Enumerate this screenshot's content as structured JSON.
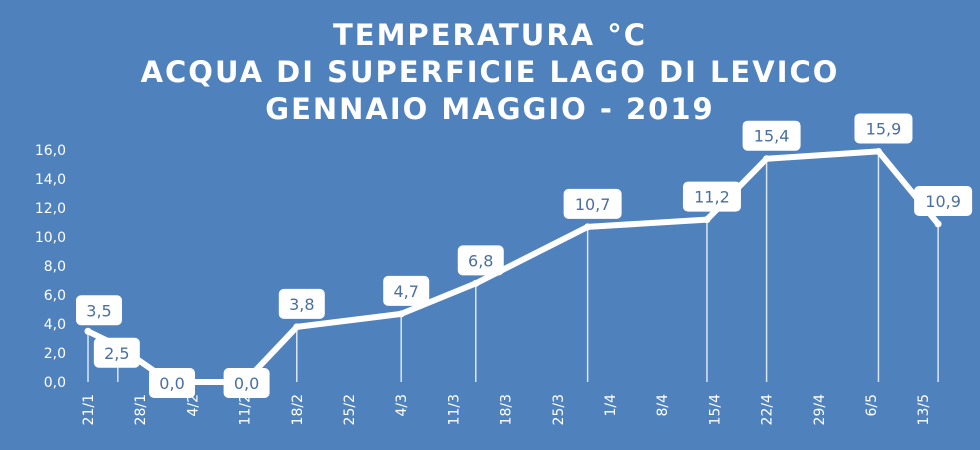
{
  "chart_data": {
    "type": "line",
    "title_lines": [
      "TEMPERATURA °C",
      "ACQUA DI SUPERFICIE LAGO DI LEVICO",
      "GENNAIO MAGGIO - 2019"
    ],
    "xlabel": "",
    "ylabel": "",
    "ylim": [
      0,
      16
    ],
    "yticks": [
      "0,0",
      "2,0",
      "4,0",
      "6,0",
      "8,0",
      "10,0",
      "12,0",
      "14,0",
      "16,0"
    ],
    "x_tick_labels": [
      "21/1",
      "28/1",
      "4/2",
      "11/2",
      "18/2",
      "25/2",
      "4/3",
      "11/3",
      "18/3",
      "25/3",
      "1/4",
      "8/4",
      "15/4",
      "22/4",
      "29/4",
      "6/5",
      "13/5"
    ],
    "points": [
      {
        "date": "21/1",
        "day": 21,
        "value": 3.5,
        "label": "3,5"
      },
      {
        "date": "25/1",
        "day": 25,
        "value": 2.5,
        "label": "2,5"
      },
      {
        "date": "1/2",
        "day": 32,
        "value": 0.0,
        "label": "0,0"
      },
      {
        "date": "11/2",
        "day": 42,
        "value": 0.0,
        "label": "0,0"
      },
      {
        "date": "18/2",
        "day": 49,
        "value": 3.8,
        "label": "3,8"
      },
      {
        "date": "4/3",
        "day": 63,
        "value": 4.7,
        "label": "4,7"
      },
      {
        "date": "14/3",
        "day": 73,
        "value": 6.8,
        "label": "6,8"
      },
      {
        "date": "29/3",
        "day": 88,
        "value": 10.7,
        "label": "10,7"
      },
      {
        "date": "14/4",
        "day": 104,
        "value": 11.2,
        "label": "11,2"
      },
      {
        "date": "22/4",
        "day": 112,
        "value": 15.4,
        "label": "15,4"
      },
      {
        "date": "7/5",
        "day": 127,
        "value": 15.9,
        "label": "15,9"
      },
      {
        "date": "15/5",
        "day": 135,
        "value": 10.9,
        "label": "10,9"
      }
    ],
    "grid": false,
    "legend": "none",
    "colors": {
      "background": "#4f81bd",
      "line": "#ffffff",
      "label_box": "#ffffff",
      "label_text": "#4a6fa5"
    }
  }
}
